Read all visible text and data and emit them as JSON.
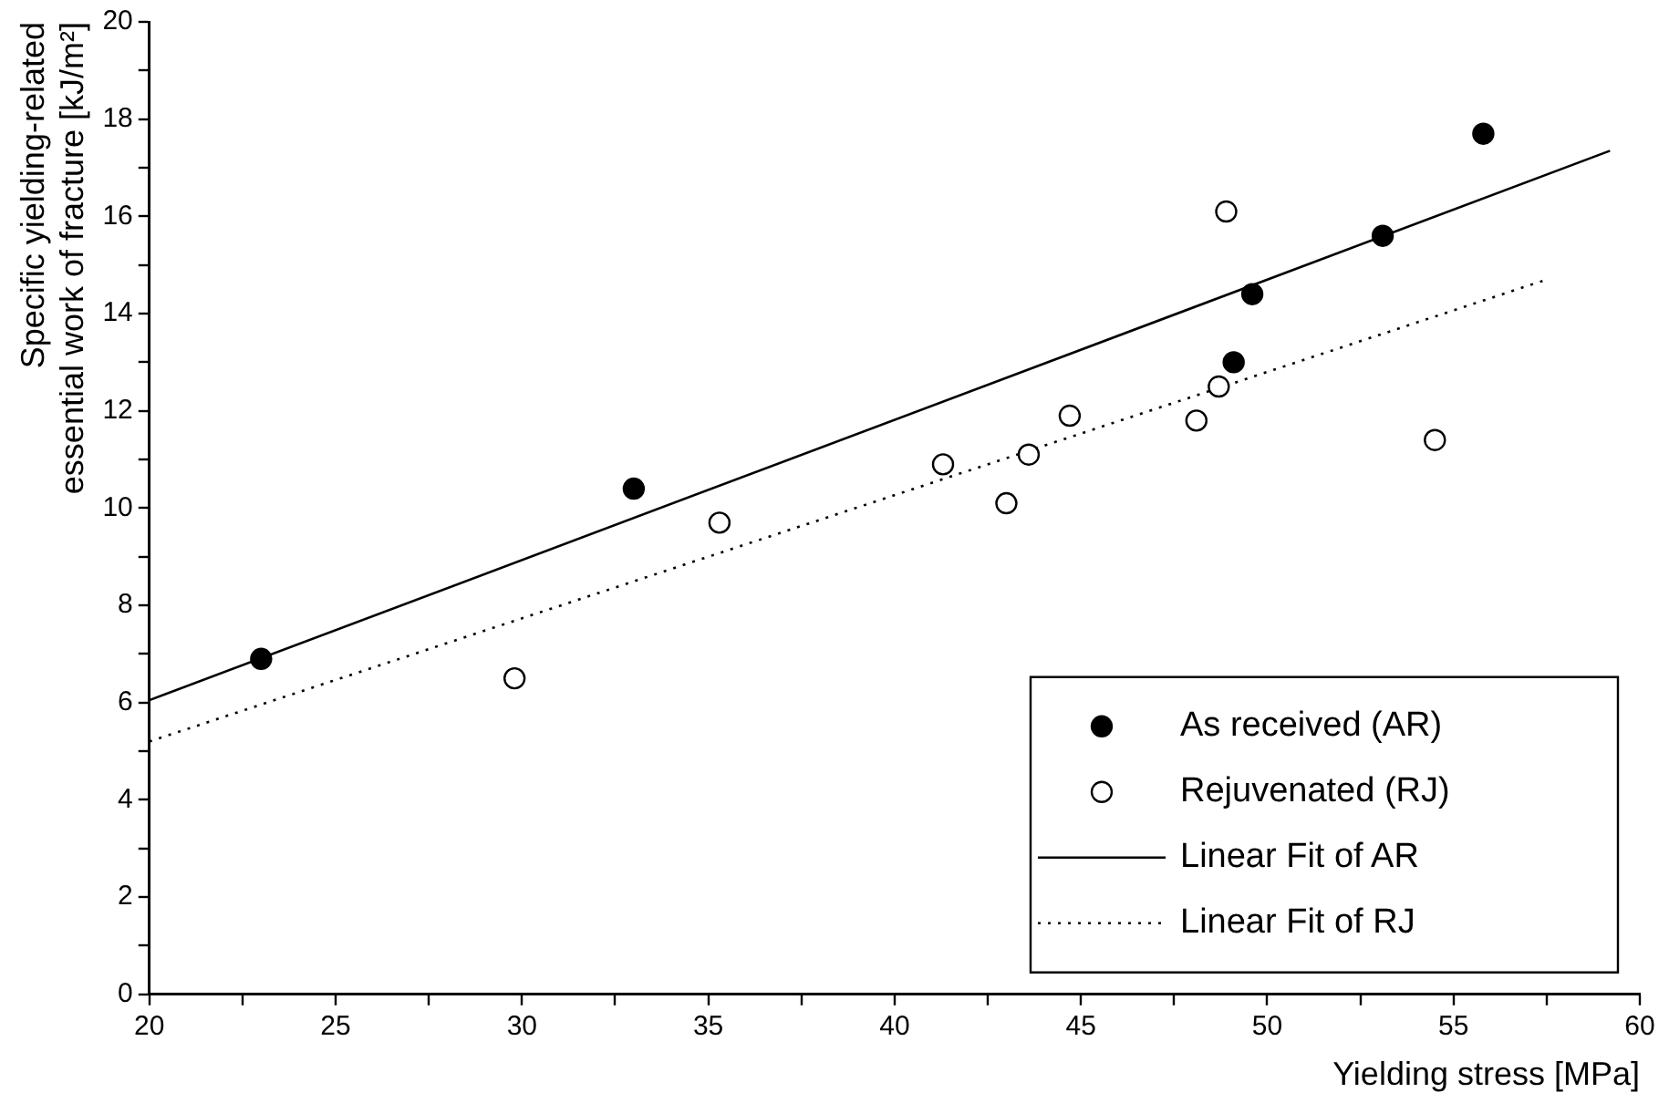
{
  "chart_data": {
    "type": "scatter",
    "xlabel": "Yielding stress [MPa]",
    "ylabel": "Specific yielding-related\nessential work of fracture [kJ/m²]",
    "xlim": [
      20,
      60
    ],
    "xticks": [
      20,
      {
        "value": 22.5,
        "label": null
      },
      25,
      {
        "value": 27.5,
        "label": null
      },
      30,
      {
        "value": 32.5,
        "label": null
      },
      35,
      {
        "value": 37.5,
        "label": null
      },
      40,
      {
        "value": 42.5,
        "label": null
      },
      45,
      {
        "value": 47.5,
        "label": null
      },
      50,
      {
        "value": 52.5,
        "label": null
      },
      55,
      {
        "value": 57.5,
        "label": null
      },
      60
    ],
    "ylim": [
      0,
      20
    ],
    "yticks": [
      0,
      {
        "value": 1,
        "label": null
      },
      2,
      {
        "value": 3,
        "label": null
      },
      4,
      {
        "value": 5,
        "label": null
      },
      6,
      {
        "value": 7,
        "label": null
      },
      8,
      {
        "value": 9,
        "label": null
      },
      10,
      {
        "value": 11,
        "label": null
      },
      12,
      {
        "value": 13,
        "label": null
      },
      14,
      {
        "value": 15,
        "label": null
      },
      16,
      {
        "value": 17,
        "label": null
      },
      18,
      {
        "value": 19,
        "label": null
      },
      20
    ],
    "grid": false,
    "legend": "bottom right",
    "series": [
      {
        "name": "As received (AR)",
        "type": "scatter",
        "marker": "circle",
        "color": "#000000",
        "x": [
          23.0,
          33.0,
          49.1,
          49.6,
          53.1,
          55.8
        ],
        "values": [
          6.9,
          10.4,
          13.0,
          14.4,
          15.6,
          17.7
        ]
      },
      {
        "name": "Rejuvenated (RJ)",
        "type": "scatter",
        "marker": "circle",
        "color": "#ffffff",
        "x": [
          29.8,
          35.3,
          41.3,
          43.0,
          43.6,
          44.7,
          48.1,
          48.7,
          48.9,
          54.5
        ],
        "values": [
          6.5,
          9.7,
          10.9,
          10.1,
          11.1,
          11.9,
          11.8,
          12.5,
          16.1,
          11.4
        ]
      },
      {
        "name": "Linear Fit of AR",
        "type": "line",
        "marker": "none",
        "line_style": "solid",
        "color": "#000000",
        "x": [
          20,
          59.2
        ],
        "values": [
          6.05,
          17.35
        ]
      },
      {
        "name": "Linear Fit of RJ",
        "type": "line",
        "marker": "none",
        "line_style": "dotted",
        "color": "#000000",
        "x": [
          20,
          57.5
        ],
        "values": [
          5.2,
          14.7
        ]
      }
    ]
  }
}
